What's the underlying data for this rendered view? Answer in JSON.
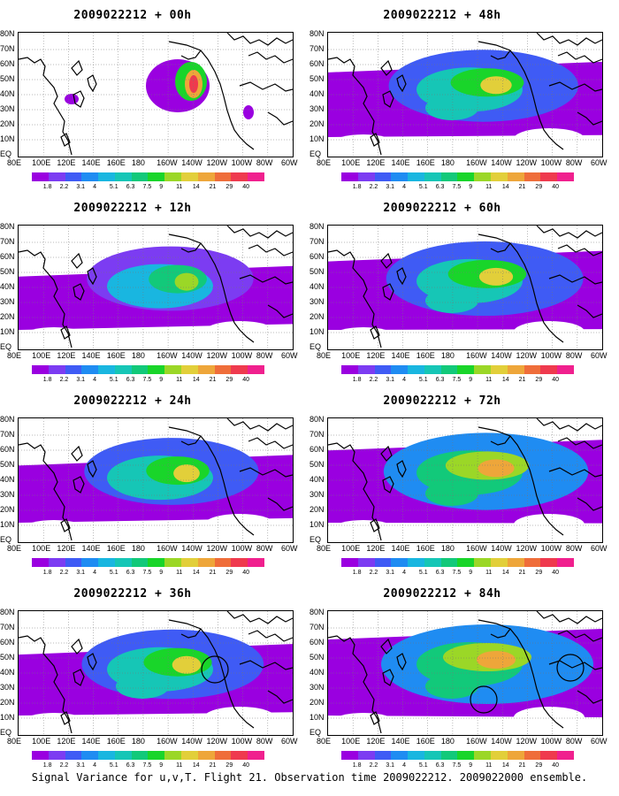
{
  "panels": [
    {
      "title": "2009022212 + 00h",
      "lead": "00h"
    },
    {
      "title": "2009022212 + 48h",
      "lead": "48h"
    },
    {
      "title": "2009022212 + 12h",
      "lead": "12h"
    },
    {
      "title": "2009022212 + 60h",
      "lead": "60h"
    },
    {
      "title": "2009022212 + 24h",
      "lead": "24h"
    },
    {
      "title": "2009022212 + 72h",
      "lead": "72h"
    },
    {
      "title": "2009022212 + 36h",
      "lead": "36h"
    },
    {
      "title": "2009022212 + 84h",
      "lead": "84h"
    }
  ],
  "lat_labels": [
    "80N",
    "70N",
    "60N",
    "50N",
    "40N",
    "30N",
    "20N",
    "10N",
    "EQ"
  ],
  "lon_labels": [
    "80E",
    "100E",
    "120E",
    "140E",
    "160E",
    "180",
    "160W",
    "140W",
    "120W",
    "100W",
    "80W",
    "60W"
  ],
  "colorbar": {
    "ticks": [
      "1.8",
      "2.2",
      "3.1",
      "4",
      "5.1",
      "6.3",
      "7.5",
      "9",
      "11",
      "14",
      "21",
      "29",
      "40"
    ],
    "colors": [
      "#9a00e0",
      "#7c3cf2",
      "#3f5bf5",
      "#1f8cf2",
      "#19b6e0",
      "#16c6b6",
      "#12c97a",
      "#19d52a",
      "#9bd727",
      "#e2cf3a",
      "#eea63a",
      "#ef6d3a",
      "#ef3a4e",
      "#f0208e"
    ]
  },
  "caption": "Signal Variance for u,v,T. Flight 21. Observation time 2009022212. 2009022000 ensemble."
}
